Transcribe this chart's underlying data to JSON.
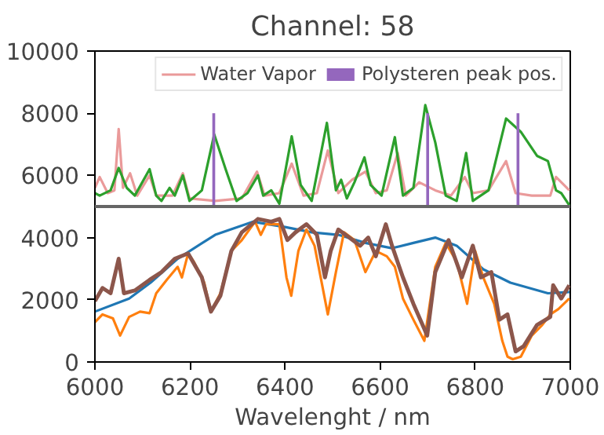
{
  "chart_data": {
    "type": "line",
    "title": "Channel: 58",
    "xlabel": "Wavelenght / nm",
    "xlim": [
      6000,
      7000
    ],
    "xticks": [
      6000,
      6200,
      6400,
      6600,
      6800,
      7000
    ],
    "ylim": [
      0,
      10000
    ],
    "yticks": [
      0,
      2000,
      4000,
      6000,
      8000,
      10000
    ],
    "grid": false,
    "legend": "top right",
    "marker": "none",
    "line_style": "solid",
    "ref_lines": [
      {
        "axis": "y",
        "value": 5000,
        "color": "#666666"
      }
    ],
    "series": [
      {
        "name": "Water Vapor",
        "color": "#ea9a9a",
        "x": [
          6000,
          6010,
          6027,
          6041,
          6050,
          6059,
          6074,
          6089,
          6115,
          6129,
          6163,
          6185,
          6199,
          6253,
          6309,
          6341,
          6357,
          6388,
          6414,
          6439,
          6467,
          6490,
          6512,
          6541,
          6569,
          6591,
          6614,
          6637,
          6654,
          6682,
          6716,
          6749,
          6778,
          6795,
          6828,
          6865,
          6885,
          6919,
          6958,
          6970,
          6998
        ],
        "values": [
          5600,
          5950,
          5430,
          5520,
          7490,
          5600,
          6070,
          5350,
          6000,
          5350,
          5350,
          6070,
          5260,
          5180,
          5260,
          6120,
          5350,
          5430,
          6380,
          5350,
          5430,
          6800,
          5430,
          5860,
          6120,
          5430,
          5520,
          6720,
          5350,
          5780,
          5520,
          5350,
          5950,
          5430,
          5520,
          6460,
          5430,
          5350,
          5350,
          5950,
          5520
        ]
      },
      {
        "color": "#2ca02c",
        "x": [
          6000,
          6010,
          6033,
          6050,
          6067,
          6084,
          6115,
          6129,
          6140,
          6157,
          6168,
          6185,
          6199,
          6225,
          6251,
          6275,
          6298,
          6321,
          6343,
          6354,
          6371,
          6388,
          6414,
          6433,
          6456,
          6488,
          6507,
          6518,
          6530,
          6546,
          6567,
          6580,
          6603,
          6631,
          6648,
          6670,
          6695,
          6716,
          6738,
          6761,
          6781,
          6795,
          6828,
          6865,
          6896,
          6930,
          6953,
          6970,
          6981,
          6998
        ],
        "values": [
          5430,
          5350,
          5520,
          6240,
          5600,
          5350,
          6200,
          5350,
          5180,
          5600,
          5350,
          6000,
          5180,
          5520,
          7320,
          6200,
          5180,
          5430,
          6000,
          5350,
          5520,
          5090,
          7260,
          5690,
          5180,
          7690,
          5520,
          5860,
          5260,
          5780,
          6580,
          5690,
          5350,
          7230,
          5350,
          5600,
          8260,
          7060,
          5350,
          5180,
          6720,
          5180,
          5520,
          7830,
          7400,
          6630,
          6460,
          5520,
          5430,
          5040
        ]
      },
      {
        "name": "Polysteren peak pos.",
        "type": "bar",
        "color": "#9467bd",
        "x": [
          6250,
          6700,
          6890
        ],
        "base": [
          5000,
          5000,
          5000
        ],
        "values": [
          3000,
          3000,
          3000
        ]
      },
      {
        "color": "#1f77b4",
        "x": [
          6000,
          6072,
          6117,
          6174,
          6253,
          6332,
          6400,
          6456,
          6512,
          6569,
          6625,
          6670,
          6716,
          6761,
          6817,
          6874,
          6953,
          6998
        ],
        "values": [
          1620,
          2040,
          2550,
          3320,
          4090,
          4510,
          4340,
          4170,
          4090,
          3830,
          3660,
          3830,
          4000,
          3740,
          2980,
          2550,
          2210,
          2250
        ]
      },
      {
        "color": "#ff7f0e",
        "x": [
          6000,
          6016,
          6038,
          6053,
          6072,
          6095,
          6115,
          6129,
          6151,
          6174,
          6183,
          6196,
          6208,
          6230,
          6244,
          6264,
          6287,
          6309,
          6337,
          6349,
          6360,
          6388,
          6403,
          6413,
          6428,
          6445,
          6462,
          6490,
          6507,
          6524,
          6546,
          6569,
          6591,
          6614,
          6631,
          6648,
          6670,
          6693,
          6716,
          6738,
          6761,
          6783,
          6800,
          6817,
          6840,
          6857,
          6868,
          6879,
          6896,
          6919,
          6941,
          6958,
          6975,
          6998
        ],
        "values": [
          1280,
          1530,
          1400,
          850,
          1450,
          1620,
          1570,
          2210,
          2640,
          3060,
          2720,
          3490,
          3230,
          2550,
          1620,
          2210,
          3570,
          3920,
          4510,
          4090,
          4430,
          4430,
          2720,
          2130,
          3570,
          4260,
          3740,
          1530,
          2890,
          4170,
          3920,
          2890,
          3570,
          3400,
          3060,
          2040,
          1360,
          680,
          3060,
          3830,
          3230,
          1870,
          3570,
          2720,
          1870,
          680,
          170,
          90,
          170,
          850,
          1190,
          1530,
          1700,
          2040
        ]
      },
      {
        "color": "#8c564b",
        "x": [
          6000,
          6016,
          6033,
          6050,
          6061,
          6084,
          6115,
          6140,
          6168,
          6196,
          6225,
          6244,
          6264,
          6287,
          6309,
          6343,
          6371,
          6388,
          6405,
          6422,
          6445,
          6467,
          6484,
          6496,
          6512,
          6535,
          6558,
          6575,
          6591,
          6612,
          6625,
          6648,
          6670,
          6699,
          6716,
          6744,
          6772,
          6795,
          6812,
          6834,
          6851,
          6868,
          6885,
          6902,
          6930,
          6958,
          6964,
          6981,
          6998
        ],
        "values": [
          1960,
          2380,
          2210,
          3320,
          2210,
          2300,
          2640,
          2890,
          3320,
          3490,
          2720,
          1620,
          2130,
          3570,
          4170,
          4600,
          4510,
          4600,
          3920,
          4170,
          4430,
          4090,
          2720,
          3570,
          4260,
          4000,
          3740,
          4000,
          3400,
          4430,
          3740,
          2720,
          1870,
          850,
          2890,
          3920,
          2720,
          3740,
          2720,
          2890,
          1360,
          1530,
          340,
          510,
          1190,
          1450,
          2470,
          2040,
          2470
        ]
      }
    ]
  }
}
